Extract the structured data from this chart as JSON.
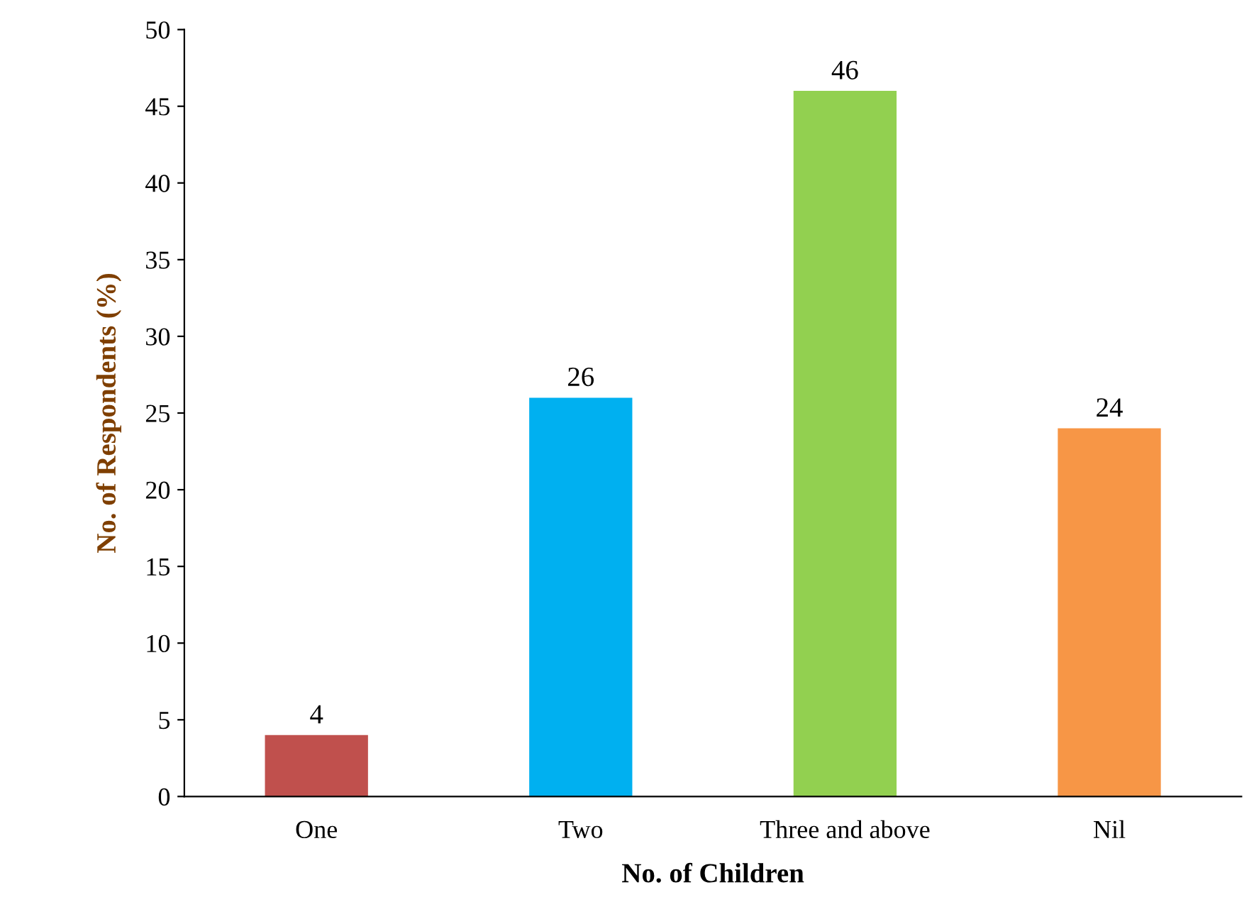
{
  "chart_data": {
    "type": "bar",
    "xlabel": "No. of Children",
    "ylabel": "No. of Respondents (%)",
    "categories": [
      "One",
      "Two",
      "Three and above",
      "Nil"
    ],
    "values": [
      4,
      26,
      46,
      24
    ],
    "colors": [
      "#c0504d",
      "#00b0f0",
      "#92d050",
      "#f79646"
    ],
    "ylim": [
      0,
      50
    ],
    "yticks": [
      0,
      5,
      10,
      15,
      20,
      25,
      30,
      35,
      40,
      45,
      50
    ],
    "data_labels": true,
    "grid": false,
    "legend": false
  }
}
